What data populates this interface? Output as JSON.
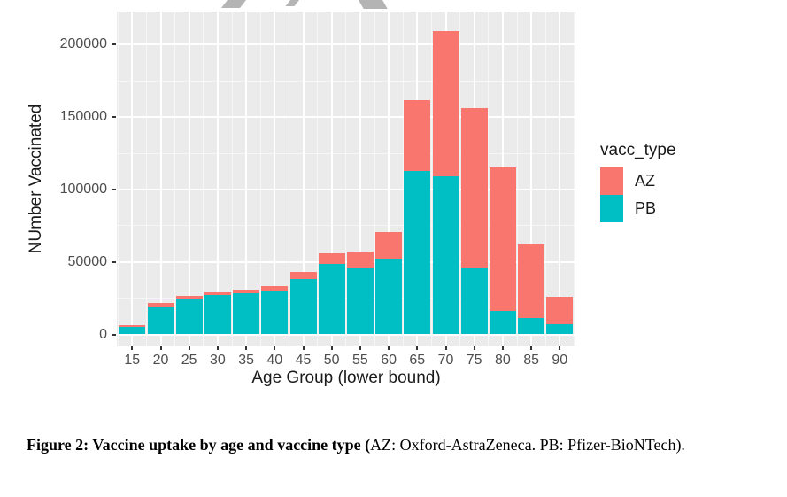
{
  "figure": {
    "chart": {
      "y_axis_title": "NUmber Vaccinated",
      "x_axis_title": "Age Group (lower bound)",
      "y_tick_labels": [
        "0",
        "50000",
        "100000",
        "150000",
        "200000"
      ],
      "x_tick_labels": [
        "15",
        "20",
        "25",
        "30",
        "35",
        "40",
        "45",
        "50",
        "55",
        "60",
        "65",
        "70",
        "75",
        "80",
        "85",
        "90"
      ]
    },
    "legend": {
      "title": "vacc_type",
      "items": [
        {
          "label": "AZ",
          "color": "#F8766D"
        },
        {
          "label": "PB",
          "color": "#00BFC4"
        }
      ]
    },
    "caption_bold": "Figure 2: Vaccine uptake by age and vaccine type (",
    "caption_regular": "AZ: Oxford-AstraZeneca. PB: Pfizer-BioNTech)."
  },
  "colors": {
    "az": "#F8766D",
    "pb": "#00BFC4",
    "panel_background": "#EBEBEB",
    "gridline": "#FFFFFF",
    "axis_text": "#4d4d4d",
    "watermark_gray": "#b4b4b4"
  },
  "chart_data": {
    "type": "bar",
    "stacked": true,
    "title": "",
    "xlabel": "Age Group (lower bound)",
    "ylabel": "NUmber Vaccinated",
    "categories": [
      15,
      20,
      25,
      30,
      35,
      40,
      45,
      50,
      55,
      60,
      65,
      70,
      75,
      80,
      85,
      90
    ],
    "series": [
      {
        "name": "PB",
        "color": "#00BFC4",
        "values": [
          5000,
          19500,
          24600,
          27000,
          28600,
          30100,
          38000,
          48500,
          46400,
          52100,
          112800,
          109000,
          46400,
          16400,
          11100,
          7000
        ]
      },
      {
        "name": "AZ",
        "color": "#F8766D",
        "values": [
          1200,
          2000,
          1900,
          2000,
          2500,
          3400,
          5000,
          7600,
          10600,
          18700,
          48700,
          100500,
          110000,
          99100,
          51400,
          19000
        ]
      }
    ],
    "totals": [
      6200,
      21500,
      26500,
      29000,
      31100,
      33500,
      43000,
      56100,
      57000,
      70800,
      161500,
      209500,
      156400,
      115500,
      62500,
      26000
    ],
    "y_ticks": [
      0,
      50000,
      100000,
      150000,
      200000
    ],
    "y_minor_ticks": [
      25000,
      75000,
      125000,
      175000
    ],
    "ylim": [
      0,
      222000
    ],
    "grid": true,
    "legend_title": "vacc_type",
    "legend_position": "right"
  }
}
